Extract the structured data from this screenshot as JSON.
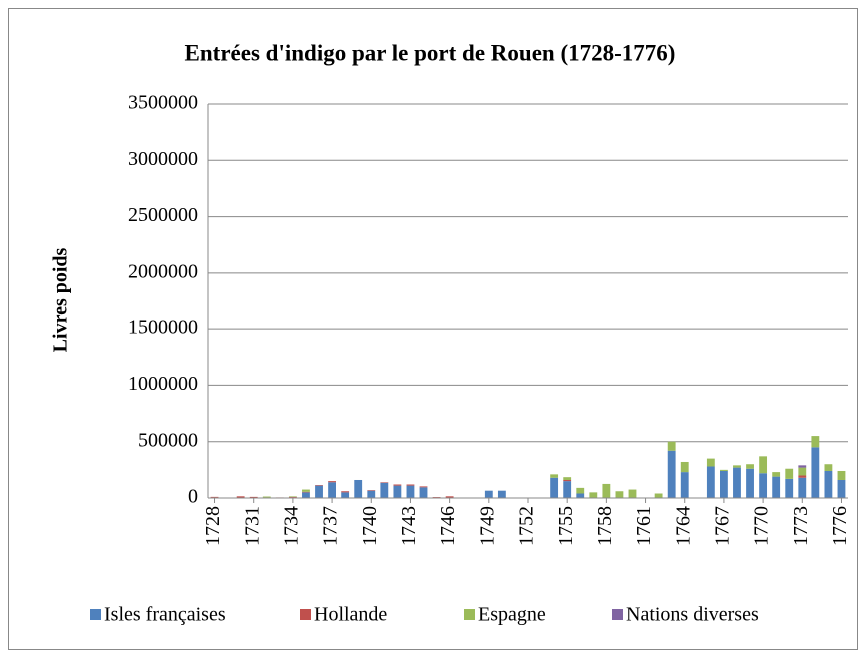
{
  "chart_data": {
    "type": "stacked_bar",
    "title": "Entrées d'indigo par le port de Rouen (1728-1776)",
    "y_label": "Livres poids",
    "categories": [
      "1728",
      null,
      null,
      "1731",
      null,
      null,
      "1734",
      null,
      null,
      "1737",
      null,
      null,
      "1740",
      null,
      null,
      "1743",
      null,
      null,
      "1746",
      null,
      null,
      "1749",
      null,
      null,
      "1752",
      null,
      null,
      "1755",
      null,
      null,
      "1758",
      null,
      null,
      "1761",
      null,
      null,
      "1764",
      null,
      null,
      "1767",
      null,
      null,
      "1770",
      null,
      null,
      "1773",
      null,
      null,
      "1776"
    ],
    "series": [
      {
        "name": "Isles françaises",
        "color": "#4f81bd",
        "values": [
          5000,
          0,
          0,
          0,
          0,
          0,
          5000,
          50000,
          110000,
          140000,
          50000,
          160000,
          65000,
          135000,
          110000,
          110000,
          95000,
          0,
          0,
          0,
          0,
          65000,
          65000,
          0,
          0,
          0,
          180000,
          150000,
          40000,
          0,
          0,
          0,
          0,
          0,
          0,
          420000,
          230000,
          0,
          280000,
          240000,
          270000,
          260000,
          220000,
          190000,
          170000,
          180000,
          450000,
          240000,
          160000
        ]
      },
      {
        "name": "Hollande",
        "color": "#c0504d",
        "values": [
          5000,
          0,
          15000,
          10000,
          5000,
          5000,
          5000,
          5000,
          5000,
          10000,
          10000,
          0,
          5000,
          5000,
          10000,
          10000,
          8000,
          8000,
          15000,
          0,
          0,
          0,
          0,
          0,
          0,
          0,
          0,
          10000,
          0,
          0,
          0,
          0,
          0,
          0,
          0,
          0,
          0,
          0,
          0,
          0,
          0,
          0,
          0,
          0,
          0,
          20000,
          0,
          0,
          0
        ]
      },
      {
        "name": "Espagne",
        "color": "#9bbb59",
        "values": [
          0,
          0,
          0,
          0,
          8000,
          0,
          5000,
          20000,
          0,
          0,
          0,
          0,
          0,
          0,
          0,
          0,
          0,
          0,
          0,
          0,
          0,
          0,
          0,
          0,
          0,
          0,
          30000,
          25000,
          50000,
          50000,
          125000,
          60000,
          75000,
          0,
          40000,
          80000,
          90000,
          0,
          70000,
          10000,
          20000,
          40000,
          150000,
          40000,
          90000,
          70000,
          100000,
          60000,
          80000
        ]
      },
      {
        "name": "Nations diverses",
        "color": "#8064a2",
        "values": [
          0,
          0,
          0,
          0,
          0,
          0,
          0,
          0,
          0,
          0,
          0,
          0,
          0,
          0,
          0,
          0,
          0,
          0,
          0,
          0,
          0,
          0,
          0,
          0,
          0,
          0,
          0,
          0,
          0,
          0,
          0,
          0,
          0,
          0,
          0,
          0,
          0,
          0,
          0,
          0,
          0,
          0,
          0,
          0,
          0,
          20000,
          0,
          0,
          0
        ]
      }
    ],
    "ylim": [
      0,
      3500000
    ],
    "yticks": [
      0,
      500000,
      1000000,
      1500000,
      2000000,
      2500000,
      3000000,
      3500000
    ],
    "grid": true,
    "legend": "bottom"
  }
}
